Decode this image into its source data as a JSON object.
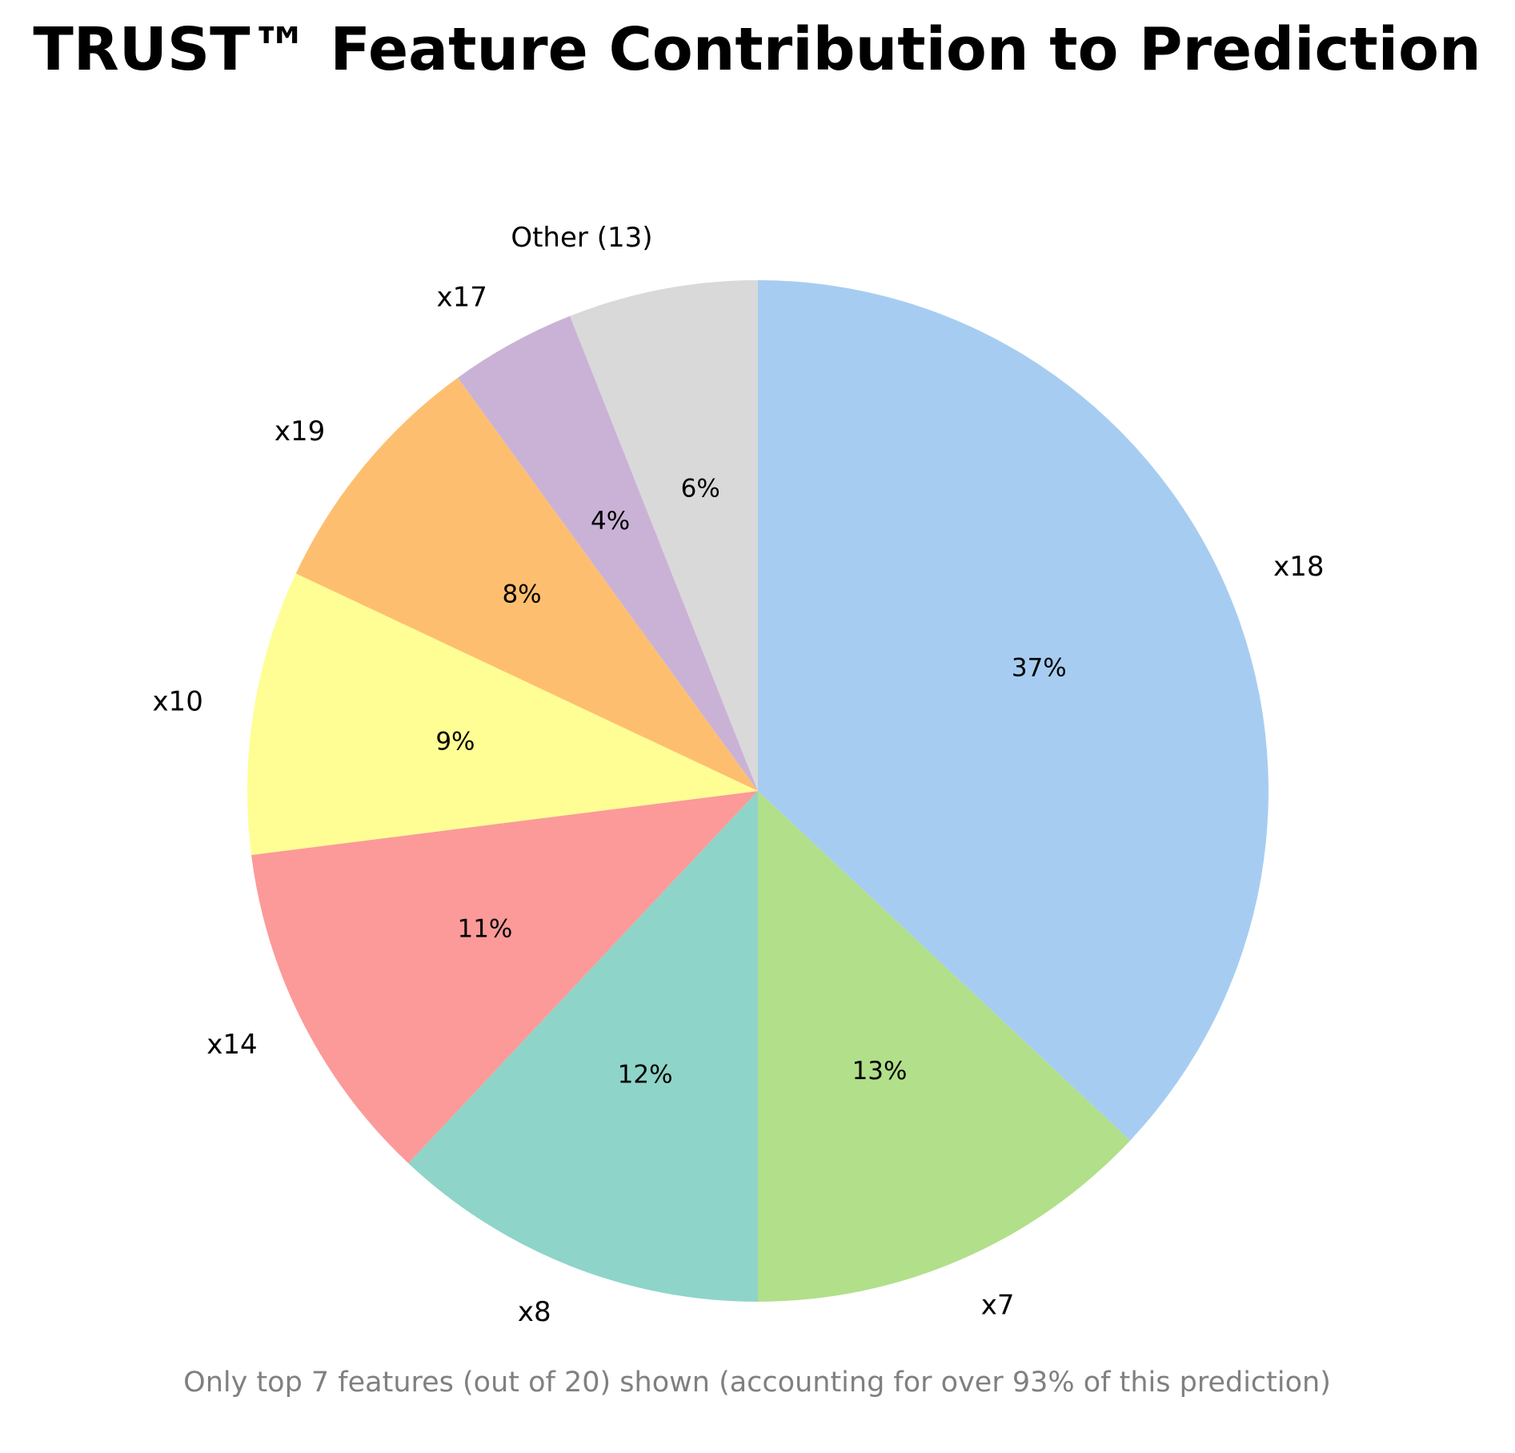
{
  "chart_data": {
    "type": "pie",
    "title": "TRUST™ Feature Contribution to Prediction",
    "caption": "Only top 7 features (out of 20) shown (accounting for over 93% of this prediction)",
    "start_angle_deg": 90,
    "direction": "clockwise",
    "slices": [
      {
        "label": "x18",
        "value": 37,
        "pct_label": "37%",
        "color": "#a6cdf1"
      },
      {
        "label": "x7",
        "value": 13,
        "pct_label": "13%",
        "color": "#b2df8a"
      },
      {
        "label": "x8",
        "value": 12,
        "pct_label": "12%",
        "color": "#8fd4c8"
      },
      {
        "label": "x14",
        "value": 11,
        "pct_label": "11%",
        "color": "#fb9a99"
      },
      {
        "label": "x10",
        "value": 9,
        "pct_label": "9%",
        "color": "#fffe94"
      },
      {
        "label": "x19",
        "value": 8,
        "pct_label": "8%",
        "color": "#fdbf6f"
      },
      {
        "label": "x17",
        "value": 4,
        "pct_label": "4%",
        "color": "#cab2d6"
      },
      {
        "label": "Other (13)",
        "value": 6,
        "pct_label": "6%",
        "color": "#d9d9d9"
      }
    ]
  }
}
